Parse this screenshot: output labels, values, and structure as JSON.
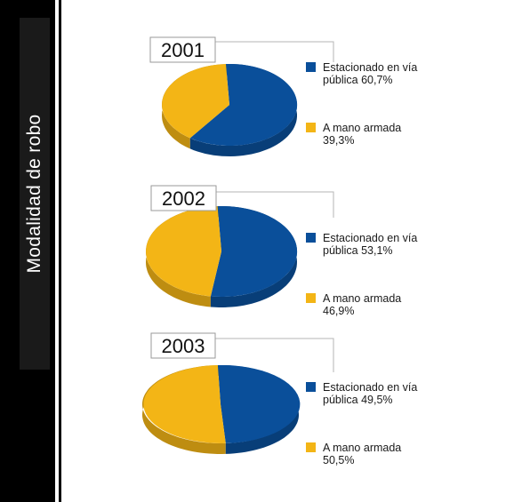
{
  "side_title": "Modalidad de robo",
  "colors": {
    "blue": "#0a4f9a",
    "orange": "#f3b516"
  },
  "chart_data": [
    {
      "type": "pie",
      "title": "2001",
      "slices": [
        {
          "label_line1": "Estacionado en vía",
          "label_line2": "pública 60,7%",
          "name": "Estacionado en vía pública",
          "value": 60.7,
          "color": "#0a4f9a"
        },
        {
          "label_line1": "A mano armada",
          "label_line2": "39,3%",
          "name": "A mano armada",
          "value": 39.3,
          "color": "#f3b516"
        }
      ]
    },
    {
      "type": "pie",
      "title": "2002",
      "slices": [
        {
          "label_line1": "Estacionado en vía",
          "label_line2": "pública 53,1%",
          "name": "Estacionado en vía pública",
          "value": 53.1,
          "color": "#0a4f9a"
        },
        {
          "label_line1": "A mano armada",
          "label_line2": "46,9%",
          "name": "A mano armada",
          "value": 46.9,
          "color": "#f3b516"
        }
      ]
    },
    {
      "type": "pie",
      "title": "2003",
      "slices": [
        {
          "label_line1": "Estacionado en vía",
          "label_line2": "pública 49,5%",
          "name": "Estacionado en vía pública",
          "value": 49.5,
          "color": "#0a4f9a"
        },
        {
          "label_line1": "A mano armada",
          "label_line2": "50,5%",
          "name": "A mano armada",
          "value": 50.5,
          "color": "#f3b516"
        }
      ]
    }
  ]
}
